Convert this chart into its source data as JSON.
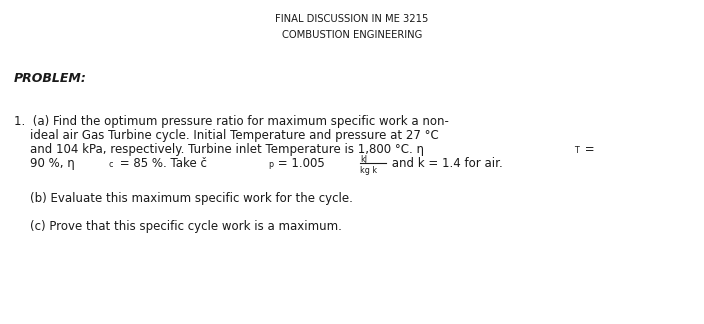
{
  "title1": "FINAL DISCUSSION IN ME 3215",
  "title2": "COMBUSTION ENGINEERING",
  "problem_label": "PROBLEM:",
  "bg_color": "#ffffff",
  "text_color": "#1a1a1a",
  "title_fontsize": 7.2,
  "body_fontsize": 8.5,
  "problem_fontsize": 9.0
}
